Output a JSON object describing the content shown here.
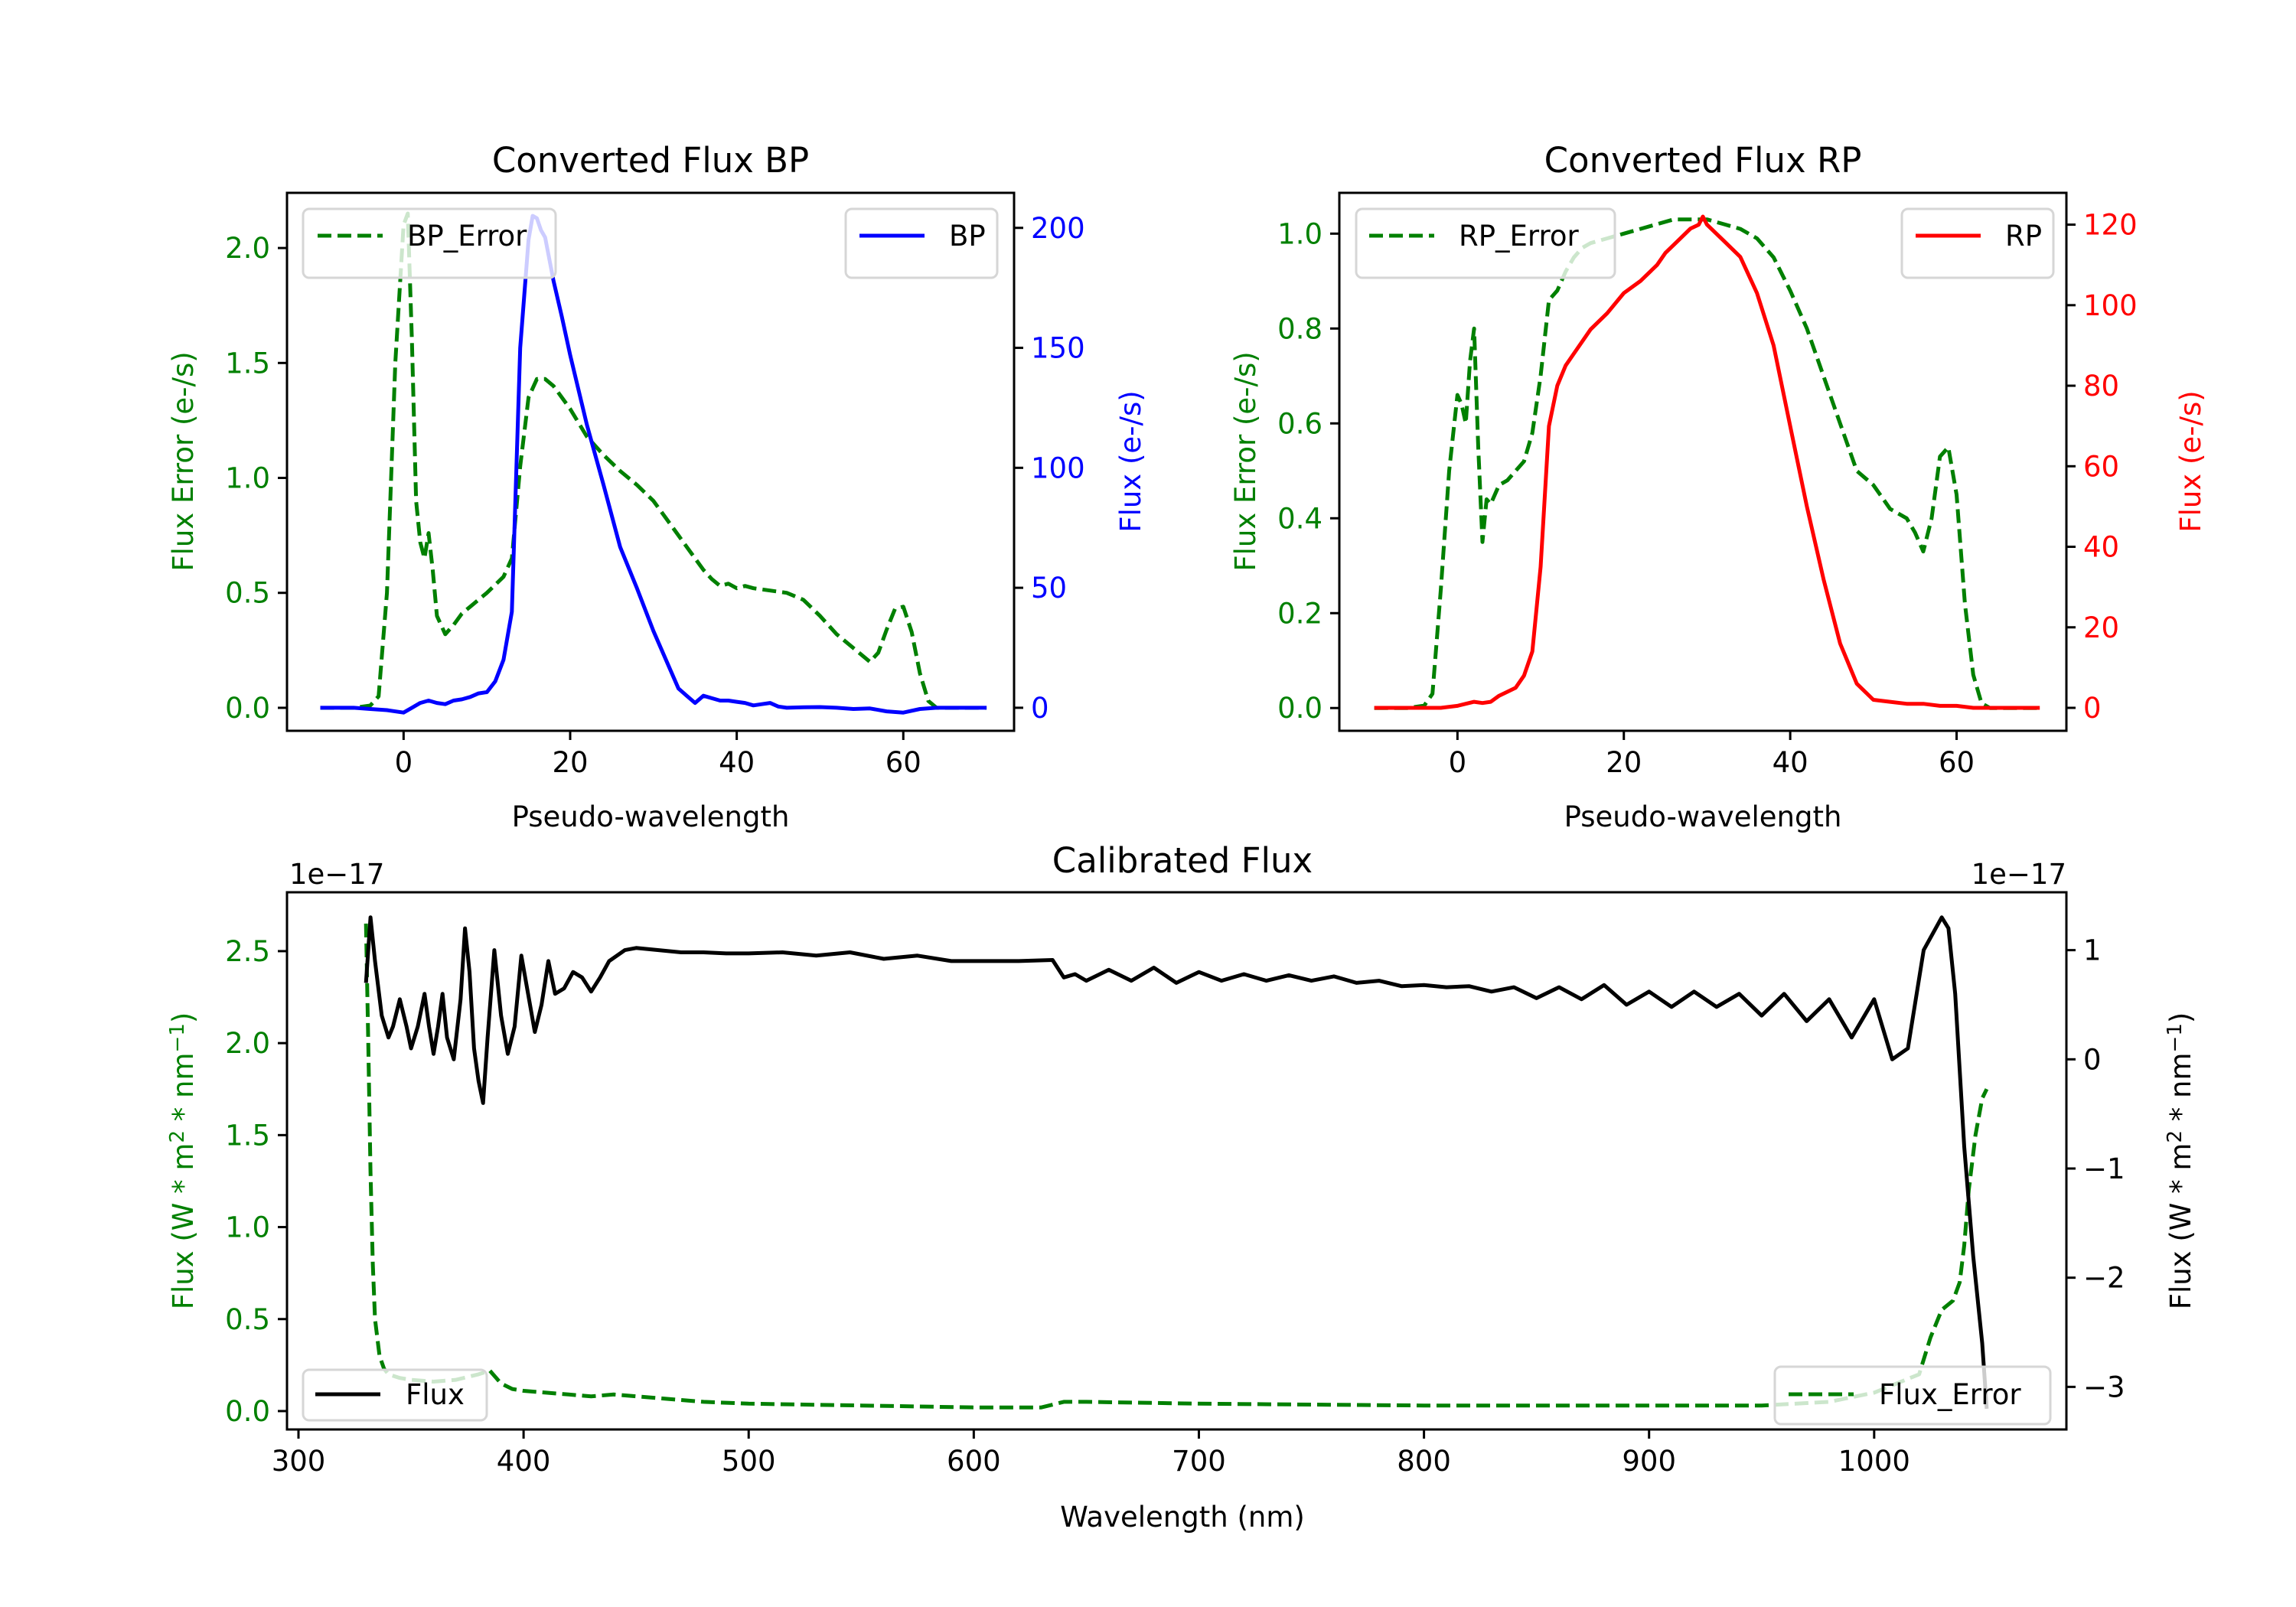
{
  "chart_data": [
    {
      "id": "bp",
      "type": "line",
      "title": "Converted Flux BP",
      "xlabel": "Pseudo-wavelength",
      "ylabel_left": "Flux Error (e-/s)",
      "ylabel_right": "Flux (e-/s)",
      "xlim": [
        -14,
        73.3
      ],
      "ylim_left": [
        -0.1,
        2.24
      ],
      "ylim_right": [
        -9.6,
        214.6
      ],
      "xticks": [
        0,
        20,
        40,
        60
      ],
      "xtick_labels": [
        "0",
        "20",
        "40",
        "60"
      ],
      "yticks_left": [
        0.0,
        0.5,
        1.0,
        1.5,
        2.0
      ],
      "ytick_labels_left": [
        "0.0",
        "0.5",
        "1.0",
        "1.5",
        "2.0"
      ],
      "yticks_right": [
        0,
        50,
        100,
        150,
        200
      ],
      "ytick_labels_right": [
        "0",
        "50",
        "100",
        "150",
        "200"
      ],
      "left_color": "#008000",
      "right_color": "#0000ff",
      "legend_left": {
        "label": "BP_Error",
        "placement": "upper-left"
      },
      "legend_right": {
        "label": "BP",
        "placement": "upper-right"
      },
      "series": [
        {
          "name": "BP_Error",
          "axis": "left",
          "style": "dashed",
          "color": "#008000",
          "x": [
            -10,
            -8,
            -6,
            -4,
            -3,
            -2,
            -1,
            0,
            0.5,
            1,
            1.5,
            2,
            2.5,
            3,
            3.5,
            4,
            5,
            6,
            7,
            8,
            10,
            12,
            13,
            14,
            15,
            16,
            17,
            18,
            19,
            20,
            22,
            24,
            26,
            28,
            30,
            32,
            34,
            36,
            37,
            38,
            39,
            40,
            41,
            42,
            44,
            46,
            48,
            50,
            52,
            54,
            56,
            57,
            58,
            59,
            60,
            61,
            62,
            63,
            64,
            66,
            68,
            70
          ],
          "y": [
            0,
            0,
            0,
            0.01,
            0.05,
            0.5,
            1.5,
            2.1,
            2.15,
            1.6,
            0.9,
            0.72,
            0.65,
            0.76,
            0.6,
            0.4,
            0.32,
            0.36,
            0.41,
            0.44,
            0.5,
            0.57,
            0.65,
            1.05,
            1.35,
            1.43,
            1.43,
            1.4,
            1.35,
            1.3,
            1.18,
            1.1,
            1.03,
            0.97,
            0.9,
            0.8,
            0.7,
            0.6,
            0.56,
            0.53,
            0.54,
            0.52,
            0.53,
            0.52,
            0.51,
            0.5,
            0.47,
            0.4,
            0.32,
            0.26,
            0.2,
            0.24,
            0.34,
            0.43,
            0.44,
            0.33,
            0.15,
            0.03,
            0,
            0,
            0,
            0
          ]
        },
        {
          "name": "BP",
          "axis": "right",
          "style": "solid",
          "color": "#0000ff",
          "x": [
            -10,
            -6,
            -4,
            -2,
            0,
            1,
            2,
            3,
            4,
            5,
            6,
            7,
            8,
            9,
            10,
            11,
            12,
            13,
            14,
            15,
            15.5,
            16,
            16.5,
            17,
            18,
            19,
            20,
            22,
            24,
            26,
            28,
            30,
            32,
            33,
            34,
            35,
            36,
            37,
            38,
            39,
            40,
            41,
            42,
            43,
            44,
            45,
            46,
            48,
            50,
            52,
            54,
            56,
            58,
            60,
            62,
            64,
            66,
            68,
            70
          ],
          "y": [
            0,
            0,
            -0.5,
            -1,
            -2,
            0,
            2,
            3,
            2,
            1.5,
            3,
            3.5,
            4.5,
            6,
            6.5,
            11,
            20,
            40,
            150,
            195,
            205,
            204,
            199,
            196,
            178,
            163,
            147,
            118,
            93,
            67,
            50,
            32,
            16,
            8,
            5,
            2,
            5,
            4,
            3,
            3,
            2.5,
            2,
            1,
            1.5,
            2,
            0.5,
            0,
            0.2,
            0.3,
            0,
            -0.5,
            -0.3,
            -1.5,
            -2,
            -0.5,
            0,
            0,
            0,
            0
          ]
        }
      ]
    },
    {
      "id": "rp",
      "type": "line",
      "title": "Converted Flux RP",
      "xlabel": "Pseudo-wavelength",
      "ylabel_left": "Flux Error (e-/s)",
      "ylabel_right": "Flux (e-/s)",
      "xlim": [
        -14.2,
        73.2
      ],
      "ylim_left": [
        -0.048,
        1.086
      ],
      "ylim_right": [
        -5.7,
        127.9
      ],
      "xticks": [
        0,
        20,
        40,
        60
      ],
      "xtick_labels": [
        "0",
        "20",
        "40",
        "60"
      ],
      "yticks_left": [
        0.0,
        0.2,
        0.4,
        0.6,
        0.8,
        1.0
      ],
      "ytick_labels_left": [
        "0.0",
        "0.2",
        "0.4",
        "0.6",
        "0.8",
        "1.0"
      ],
      "yticks_right": [
        0,
        20,
        40,
        60,
        80,
        100,
        120
      ],
      "ytick_labels_right": [
        "0",
        "20",
        "40",
        "60",
        "80",
        "100",
        "120"
      ],
      "left_color": "#008000",
      "right_color": "#ff0000",
      "legend_left": {
        "label": "RP_Error",
        "placement": "upper-left"
      },
      "legend_right": {
        "label": "RP",
        "placement": "upper-right"
      },
      "series": [
        {
          "name": "RP_Error",
          "axis": "left",
          "style": "dashed",
          "color": "#008000",
          "x": [
            -10,
            -6,
            -4,
            -3,
            -2,
            -1,
            0,
            0.5,
            1,
            1.5,
            2,
            2.5,
            3,
            3.5,
            4,
            5,
            6,
            7,
            8,
            9,
            10,
            11,
            12,
            13,
            14,
            15,
            16,
            18,
            20,
            22,
            24,
            26,
            28,
            30,
            32,
            34,
            36,
            38,
            40,
            42,
            44,
            46,
            48,
            50,
            52,
            54,
            55,
            56,
            57,
            58,
            59,
            60,
            61,
            62,
            63,
            64,
            66,
            68,
            70
          ],
          "y": [
            0,
            0,
            0.005,
            0.03,
            0.25,
            0.5,
            0.66,
            0.64,
            0.6,
            0.73,
            0.8,
            0.55,
            0.35,
            0.44,
            0.43,
            0.47,
            0.48,
            0.5,
            0.52,
            0.58,
            0.7,
            0.86,
            0.88,
            0.92,
            0.95,
            0.97,
            0.98,
            0.99,
            1.0,
            1.01,
            1.02,
            1.03,
            1.03,
            1.03,
            1.02,
            1.01,
            0.99,
            0.95,
            0.88,
            0.8,
            0.7,
            0.6,
            0.5,
            0.47,
            0.42,
            0.4,
            0.37,
            0.33,
            0.4,
            0.53,
            0.55,
            0.45,
            0.22,
            0.07,
            0.01,
            0,
            0,
            0,
            0
          ]
        },
        {
          "name": "RP",
          "axis": "right",
          "style": "solid",
          "color": "#ff0000",
          "x": [
            -10,
            -6,
            -4,
            -2,
            0,
            1,
            2,
            3,
            4,
            5,
            6,
            7,
            8,
            9,
            10,
            11,
            12,
            13,
            14,
            16,
            18,
            20,
            22,
            24,
            25,
            26,
            27,
            28,
            29,
            29.5,
            30,
            31,
            32,
            34,
            36,
            38,
            40,
            42,
            44,
            46,
            48,
            50,
            52,
            54,
            56,
            58,
            60,
            62,
            64,
            66,
            68,
            70
          ],
          "y": [
            0,
            0,
            0,
            0,
            0.5,
            1,
            1.5,
            1.2,
            1.5,
            3,
            4,
            5,
            8,
            14,
            35,
            70,
            80,
            85,
            88,
            94,
            98,
            103,
            106,
            110,
            113,
            115,
            117,
            119,
            120,
            122,
            120,
            118,
            116,
            112,
            103,
            90,
            70,
            50,
            32,
            16,
            6,
            2,
            1.5,
            1,
            1,
            0.5,
            0.5,
            0,
            0,
            0,
            0,
            0
          ]
        }
      ]
    },
    {
      "id": "calibrated",
      "type": "line",
      "title": "Calibrated Flux",
      "xlabel": "Wavelength (nm)",
      "ylabel_left": "Flux (W * m^2 * nm^-1)",
      "ylabel_right": "Flux (W * m^2 * nm^-1)",
      "offset_left": "1e−17",
      "offset_right": "1e−17",
      "xlim": [
        294.9,
        1085.4
      ],
      "ylim_left": [
        -0.1,
        2.82
      ],
      "ylim_right": [
        -3.39,
        1.53
      ],
      "xticks": [
        300,
        400,
        500,
        600,
        700,
        800,
        900,
        1000
      ],
      "xtick_labels": [
        "300",
        "400",
        "500",
        "600",
        "700",
        "800",
        "900",
        "1000"
      ],
      "yticks_left": [
        0.0,
        0.5,
        1.0,
        1.5,
        2.0,
        2.5
      ],
      "ytick_labels_left": [
        "0.0",
        "0.5",
        "1.0",
        "1.5",
        "2.0",
        "2.5"
      ],
      "yticks_right": [
        -3,
        -2,
        -1,
        0,
        1
      ],
      "ytick_labels_right": [
        "−3",
        "−2",
        "−1",
        "0",
        "1"
      ],
      "left_color": "#008000",
      "right_color": "#000000",
      "legend_left": {
        "label": "Flux",
        "placement": "lower-left"
      },
      "legend_right": {
        "label": "Flux_Error",
        "placement": "lower-right"
      },
      "series": [
        {
          "name": "Flux_Error",
          "axis": "left",
          "style": "dashed",
          "color": "#008000",
          "x": [
            330,
            331,
            332,
            333,
            334,
            336,
            338,
            340,
            345,
            350,
            360,
            370,
            380,
            385,
            390,
            395,
            400,
            410,
            420,
            430,
            440,
            450,
            460,
            470,
            480,
            500,
            550,
            600,
            630,
            640,
            650,
            700,
            800,
            900,
            950,
            980,
            1000,
            1010,
            1020,
            1025,
            1030,
            1035,
            1038,
            1040,
            1042,
            1045,
            1048,
            1050
          ],
          "y": [
            2.65,
            2.0,
            1.3,
            0.8,
            0.5,
            0.3,
            0.23,
            0.2,
            0.18,
            0.17,
            0.16,
            0.17,
            0.2,
            0.22,
            0.15,
            0.12,
            0.11,
            0.1,
            0.09,
            0.08,
            0.09,
            0.08,
            0.07,
            0.06,
            0.05,
            0.04,
            0.03,
            0.02,
            0.02,
            0.05,
            0.05,
            0.04,
            0.03,
            0.03,
            0.03,
            0.05,
            0.1,
            0.15,
            0.2,
            0.4,
            0.55,
            0.6,
            0.7,
            0.9,
            1.2,
            1.5,
            1.7,
            1.75
          ]
        },
        {
          "name": "Flux",
          "axis": "right",
          "style": "solid",
          "color": "#000000",
          "x": [
            330,
            332,
            334,
            337,
            340,
            342,
            345,
            348,
            350,
            353,
            356,
            358,
            360,
            362,
            364,
            366,
            369,
            372,
            374,
            376,
            378,
            380,
            382,
            384,
            387,
            390,
            393,
            396,
            399,
            402,
            405,
            408,
            411,
            414,
            418,
            422,
            426,
            430,
            434,
            438,
            445,
            450,
            460,
            470,
            480,
            490,
            500,
            515,
            530,
            545,
            560,
            575,
            590,
            605,
            620,
            635,
            640,
            645,
            650,
            660,
            670,
            680,
            690,
            700,
            710,
            720,
            730,
            740,
            750,
            760,
            770,
            780,
            790,
            800,
            810,
            820,
            830,
            840,
            850,
            860,
            870,
            880,
            890,
            900,
            910,
            920,
            930,
            940,
            950,
            960,
            970,
            980,
            990,
            1000,
            1008,
            1015,
            1022,
            1030,
            1033,
            1036,
            1040,
            1044,
            1048,
            1050
          ],
          "y": [
            0.7,
            1.3,
            0.9,
            0.4,
            0.2,
            0.3,
            0.55,
            0.3,
            0.1,
            0.3,
            0.6,
            0.3,
            0.05,
            0.3,
            0.6,
            0.2,
            0.0,
            0.55,
            1.2,
            0.8,
            0.1,
            -0.2,
            -0.4,
            0.2,
            1.0,
            0.4,
            0.05,
            0.3,
            0.95,
            0.6,
            0.25,
            0.5,
            0.9,
            0.6,
            0.65,
            0.8,
            0.75,
            0.62,
            0.75,
            0.9,
            1.0,
            1.02,
            1.0,
            0.98,
            0.98,
            0.97,
            0.97,
            0.98,
            0.95,
            0.98,
            0.92,
            0.95,
            0.9,
            0.9,
            0.9,
            0.91,
            0.75,
            0.78,
            0.72,
            0.82,
            0.72,
            0.84,
            0.7,
            0.8,
            0.72,
            0.78,
            0.72,
            0.77,
            0.72,
            0.76,
            0.7,
            0.72,
            0.67,
            0.68,
            0.66,
            0.67,
            0.62,
            0.66,
            0.56,
            0.66,
            0.55,
            0.68,
            0.5,
            0.62,
            0.48,
            0.62,
            0.48,
            0.6,
            0.4,
            0.6,
            0.35,
            0.55,
            0.2,
            0.55,
            0.0,
            0.1,
            1.0,
            1.3,
            1.2,
            0.6,
            -0.8,
            -1.8,
            -2.6,
            -3.2
          ]
        }
      ]
    }
  ]
}
